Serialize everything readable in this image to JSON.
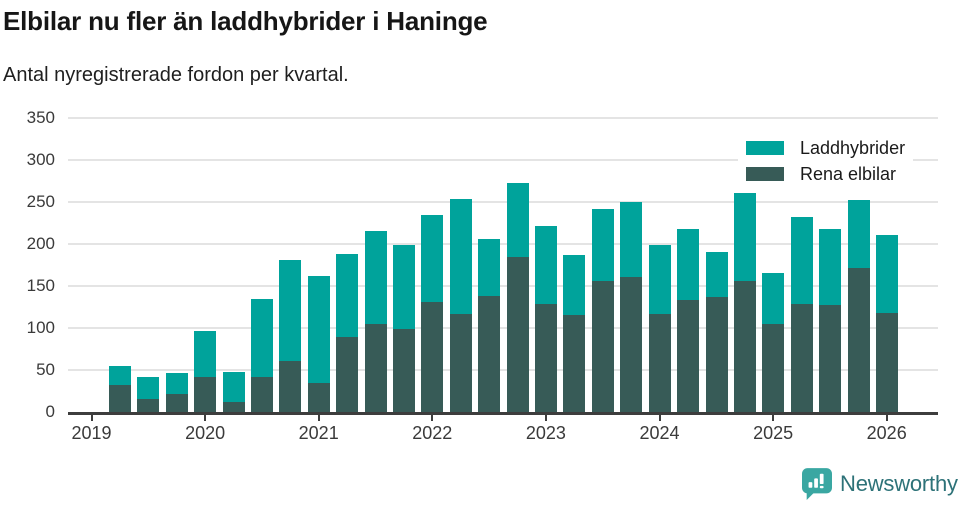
{
  "header": {
    "title": "Elbilar nu fler än laddhybrider i Haninge",
    "subtitle": "Antal nyregistrerade fordon per kvartal."
  },
  "chart_data": {
    "type": "bar",
    "stacked": true,
    "title": "Elbilar nu fler än laddhybrider i Haninge",
    "subtitle": "Antal nyregistrerade fordon per kvartal.",
    "categories": [
      "2019-Q2",
      "2019-Q3",
      "2019-Q4",
      "2020-Q1",
      "2020-Q2",
      "2020-Q3",
      "2020-Q4",
      "2021-Q1",
      "2021-Q2",
      "2021-Q3",
      "2021-Q4",
      "2022-Q1",
      "2022-Q2",
      "2022-Q3",
      "2022-Q4",
      "2023-Q1",
      "2023-Q2",
      "2023-Q3",
      "2023-Q4",
      "2024-Q1",
      "2024-Q2",
      "2024-Q3",
      "2024-Q4",
      "2025-Q1",
      "2025-Q2",
      "2025-Q3",
      "2025-Q4",
      "2026-Q1"
    ],
    "series": [
      {
        "name": "Laddhybrider",
        "color": "#00a39b",
        "stack_role": "top",
        "values": [
          23,
          26,
          25,
          54,
          36,
          93,
          120,
          127,
          99,
          111,
          100,
          104,
          137,
          68,
          88,
          94,
          72,
          86,
          89,
          82,
          85,
          53,
          105,
          60,
          104,
          91,
          80,
          93
        ]
      },
      {
        "name": "Rena elbilar",
        "color": "#375b57",
        "stack_role": "bottom",
        "values": [
          32,
          16,
          21,
          42,
          12,
          42,
          61,
          35,
          89,
          105,
          99,
          131,
          117,
          138,
          185,
          128,
          115,
          156,
          161,
          117,
          133,
          137,
          156,
          105,
          128,
          127,
          172,
          118
        ]
      }
    ],
    "totals": [
      55,
      42,
      46,
      96,
      48,
      135,
      181,
      162,
      188,
      216,
      199,
      235,
      254,
      206,
      273,
      222,
      187,
      242,
      250,
      199,
      218,
      190,
      261,
      165,
      232,
      218,
      252,
      211
    ],
    "ylim": [
      0,
      350
    ],
    "yticks": [
      0,
      50,
      100,
      150,
      200,
      250,
      300,
      350
    ],
    "xticks": [
      "2019",
      "2020",
      "2021",
      "2022",
      "2023",
      "2024",
      "2025",
      "2026"
    ],
    "grid": true,
    "legend_position": "top-right",
    "colors": {
      "grid": "#e4e4e4",
      "axis": "#3d3d3d",
      "text": "#3a3a3a"
    }
  },
  "footer": {
    "brand": "Newsworthy",
    "brand_color": "#2d7278",
    "icon_color": "#3aa7a2"
  }
}
